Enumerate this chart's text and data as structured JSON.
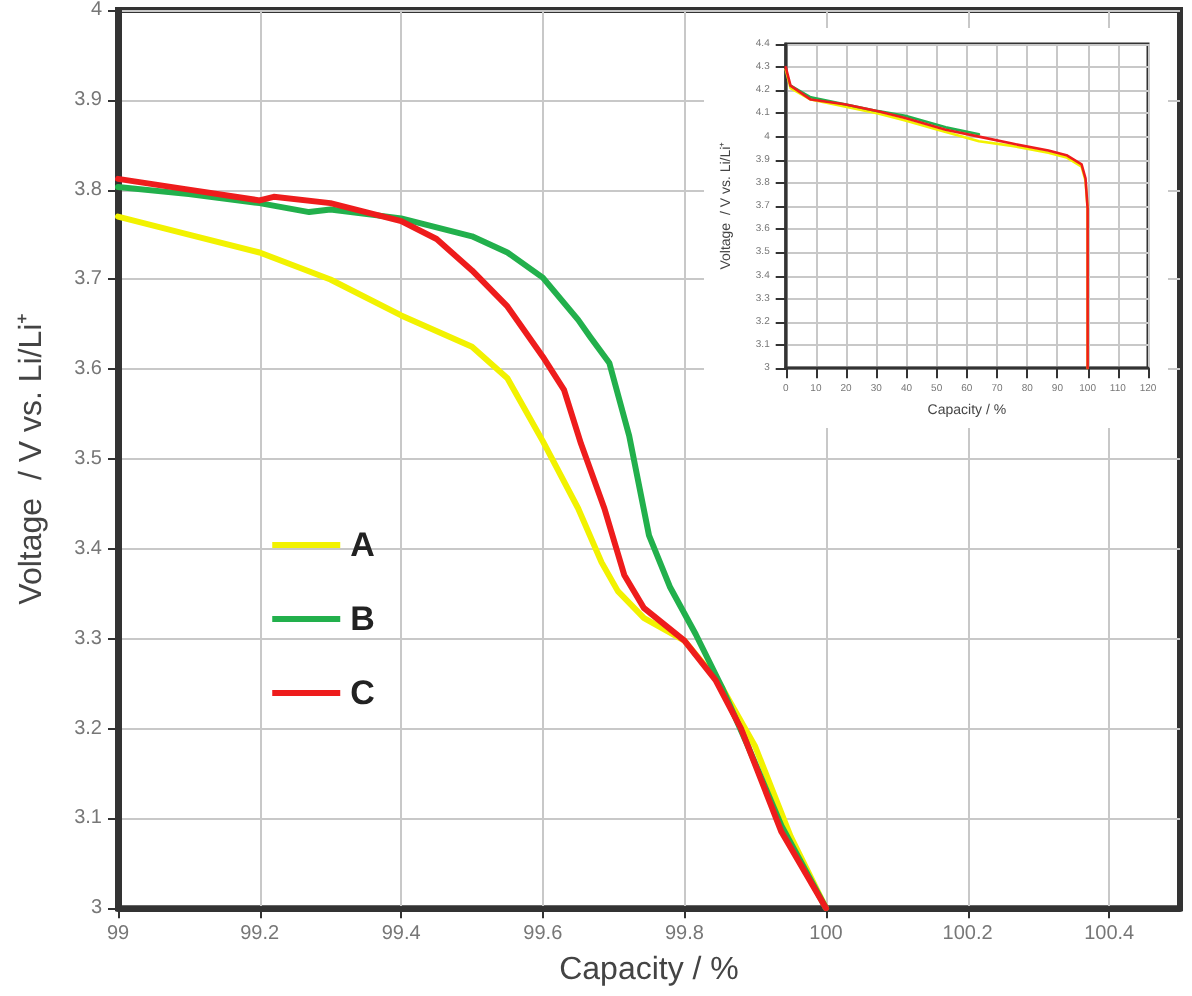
{
  "chart_data": [
    {
      "type": "line",
      "xlabel": "Capacity / %",
      "ylabel": "Voltage  / V vs. Li/Li⁺",
      "xlim": [
        99,
        100.5
      ],
      "xticks": [
        99,
        99.2,
        99.4,
        99.6,
        99.8,
        100,
        100.2,
        100.4
      ],
      "ylim": [
        3,
        4
      ],
      "yticks": [
        3,
        3.1,
        3.2,
        3.3,
        3.4,
        3.5,
        3.6,
        3.7,
        3.8,
        3.9,
        4
      ],
      "grid": true,
      "legend": "bottom left",
      "marker": "none",
      "series": [
        {
          "name": "A",
          "color": "#f2f200",
          "x": [
            99,
            99.1,
            99.2,
            99.3,
            99.4,
            99.5,
            99.55,
            99.6,
            99.65,
            99.683,
            99.706,
            99.743,
            99.8,
            99.85,
            99.9,
            99.95,
            100
          ],
          "values": [
            3.77,
            3.75,
            3.73,
            3.7,
            3.66,
            3.625,
            3.59,
            3.52,
            3.445,
            3.385,
            3.353,
            3.323,
            3.298,
            3.25,
            3.18,
            3.08,
            3.0
          ]
        },
        {
          "name": "B",
          "color": "#22b04c",
          "x": [
            99,
            99.1,
            99.2,
            99.27,
            99.3,
            99.4,
            99.5,
            99.55,
            99.6,
            99.65,
            99.667,
            99.694,
            99.722,
            99.75,
            99.78,
            99.816,
            99.853,
            99.89,
            99.937,
            100
          ],
          "values": [
            3.803,
            3.795,
            3.785,
            3.775,
            3.778,
            3.768,
            3.748,
            3.73,
            3.702,
            3.655,
            3.636,
            3.607,
            3.526,
            3.415,
            3.357,
            3.305,
            3.246,
            3.18,
            3.092,
            3.0
          ]
        },
        {
          "name": "C",
          "color": "#ee1c1c",
          "x": [
            99,
            99.1,
            99.2,
            99.22,
            99.3,
            99.4,
            99.45,
            99.5,
            99.55,
            99.6,
            99.63,
            99.654,
            99.687,
            99.715,
            99.743,
            99.8,
            99.844,
            99.88,
            99.937,
            100
          ],
          "values": [
            3.812,
            3.8,
            3.788,
            3.792,
            3.785,
            3.765,
            3.745,
            3.71,
            3.67,
            3.614,
            3.577,
            3.517,
            3.445,
            3.371,
            3.334,
            3.298,
            3.254,
            3.2,
            3.085,
            3.0
          ]
        }
      ]
    },
    {
      "type": "line",
      "xlabel": "Capacity / %",
      "ylabel": "Voltage  / V vs. Li/Li⁺",
      "xlim": [
        0,
        120
      ],
      "xticks": [
        0,
        10,
        20,
        30,
        40,
        50,
        60,
        70,
        80,
        90,
        100,
        110,
        120
      ],
      "ylim": [
        3,
        4.4
      ],
      "yticks": [
        3,
        3.1,
        3.2,
        3.3,
        3.4,
        3.5,
        3.6,
        3.7,
        3.8,
        3.9,
        4,
        4.1,
        4.2,
        4.3,
        4.4
      ],
      "grid": true,
      "marker": "none",
      "series": [
        {
          "color": "#f2f200",
          "x": [
            0,
            1.6,
            8.3,
            19.5,
            30.6,
            39.6,
            53,
            64,
            75,
            87,
            93,
            98,
            99.3,
            100,
            100
          ],
          "values": [
            4.29,
            4.21,
            4.16,
            4.13,
            4.1,
            4.07,
            4.02,
            3.98,
            3.96,
            3.93,
            3.91,
            3.87,
            3.81,
            3.69,
            3.0
          ]
        },
        {
          "color": "#22b04c",
          "x": [
            1.6,
            8.3,
            19.5,
            30.6,
            39.6,
            53,
            64
          ],
          "values": [
            4.22,
            4.17,
            4.14,
            4.11,
            4.09,
            4.04,
            4.01
          ]
        },
        {
          "color": "#ee1c1c",
          "x": [
            0,
            1.6,
            8.3,
            19.5,
            30.6,
            39.6,
            53,
            64,
            75,
            87,
            93,
            98,
            99.3,
            100,
            100
          ],
          "values": [
            4.3,
            4.22,
            4.16,
            4.14,
            4.11,
            4.08,
            4.03,
            4.0,
            3.97,
            3.94,
            3.92,
            3.88,
            3.82,
            3.69,
            3.0
          ]
        }
      ]
    }
  ]
}
